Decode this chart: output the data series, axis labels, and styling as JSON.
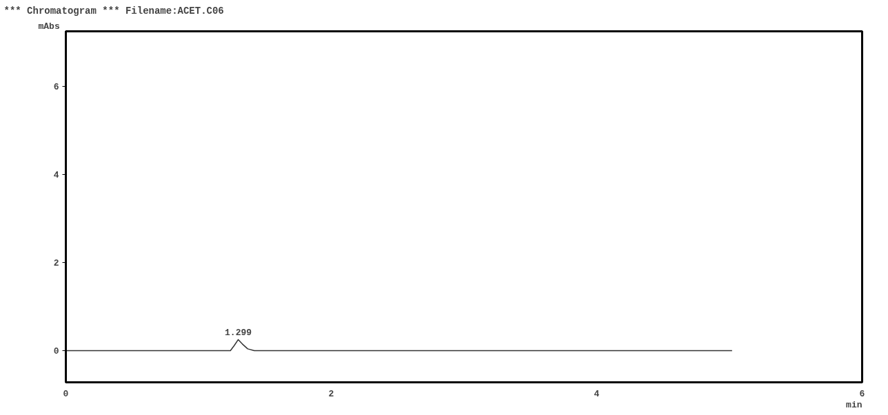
{
  "chart_data": {
    "type": "line",
    "title": "*** Chromatogram ***   Filename:ACET.C06",
    "xlabel": "min",
    "ylabel": "mAbs",
    "series": [
      {
        "color": "#333333",
        "x": [
          0,
          0.5,
          1.0,
          1.24,
          1.27,
          1.299,
          1.33,
          1.37,
          1.42,
          2.0,
          3.0,
          4.0,
          5.02
        ],
        "values": [
          0,
          0,
          0,
          0,
          0.12,
          0.25,
          0.15,
          0.04,
          0,
          0,
          0,
          0,
          0
        ]
      }
    ],
    "xlim": [
      0,
      6
    ],
    "ylim": [
      -0.72,
      7.25
    ],
    "xticks": [
      0,
      2,
      4,
      6
    ],
    "yticks": [
      0,
      2,
      4,
      6
    ],
    "annotations": [
      {
        "text": "1.299",
        "x": 1.299,
        "y": 0.25
      }
    ],
    "grid": false,
    "marker": "none",
    "line_style": "solid"
  }
}
